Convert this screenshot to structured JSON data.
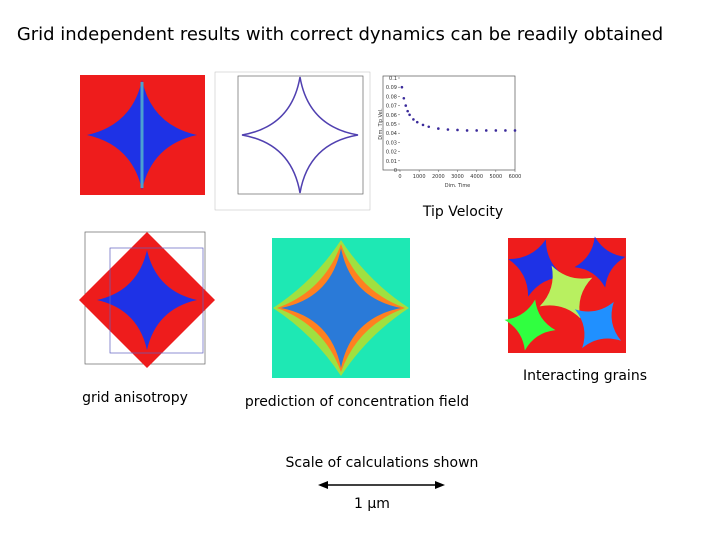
{
  "header": {
    "title": "Grid independent results with correct dynamics can be readily obtained"
  },
  "captions": {
    "tip_velocity": "Tip Velocity",
    "interacting_grains": "Interacting grains",
    "grid_anisotropy": "grid anisotropy",
    "concentration": "prediction of concentration field",
    "scale": "Scale of calculations shown",
    "scale_bar": "1 µm"
  },
  "chart_data": {
    "type": "scatter",
    "x_label": "Dim. Time",
    "y_label": "Dim. Tip Vel.",
    "x": [
      100,
      200,
      300,
      400,
      500,
      700,
      900,
      1200,
      1500,
      2000,
      2500,
      3000,
      3500,
      4000,
      4500,
      5000,
      5500,
      6000
    ],
    "y": [
      0.09,
      0.078,
      0.07,
      0.064,
      0.06,
      0.055,
      0.052,
      0.049,
      0.047,
      0.045,
      0.044,
      0.0435,
      0.043,
      0.043,
      0.043,
      0.043,
      0.043,
      0.043
    ],
    "color": "#3a2a9a",
    "xlim": [
      0,
      6000
    ],
    "xticks": [
      0,
      1000,
      2000,
      3000,
      4000,
      5000,
      6000
    ],
    "ylim": [
      0,
      0.1
    ],
    "yticks": [
      0,
      0.01,
      0.02,
      0.03,
      0.04,
      0.05,
      0.06,
      0.07,
      0.08,
      0.09,
      0.1
    ]
  }
}
